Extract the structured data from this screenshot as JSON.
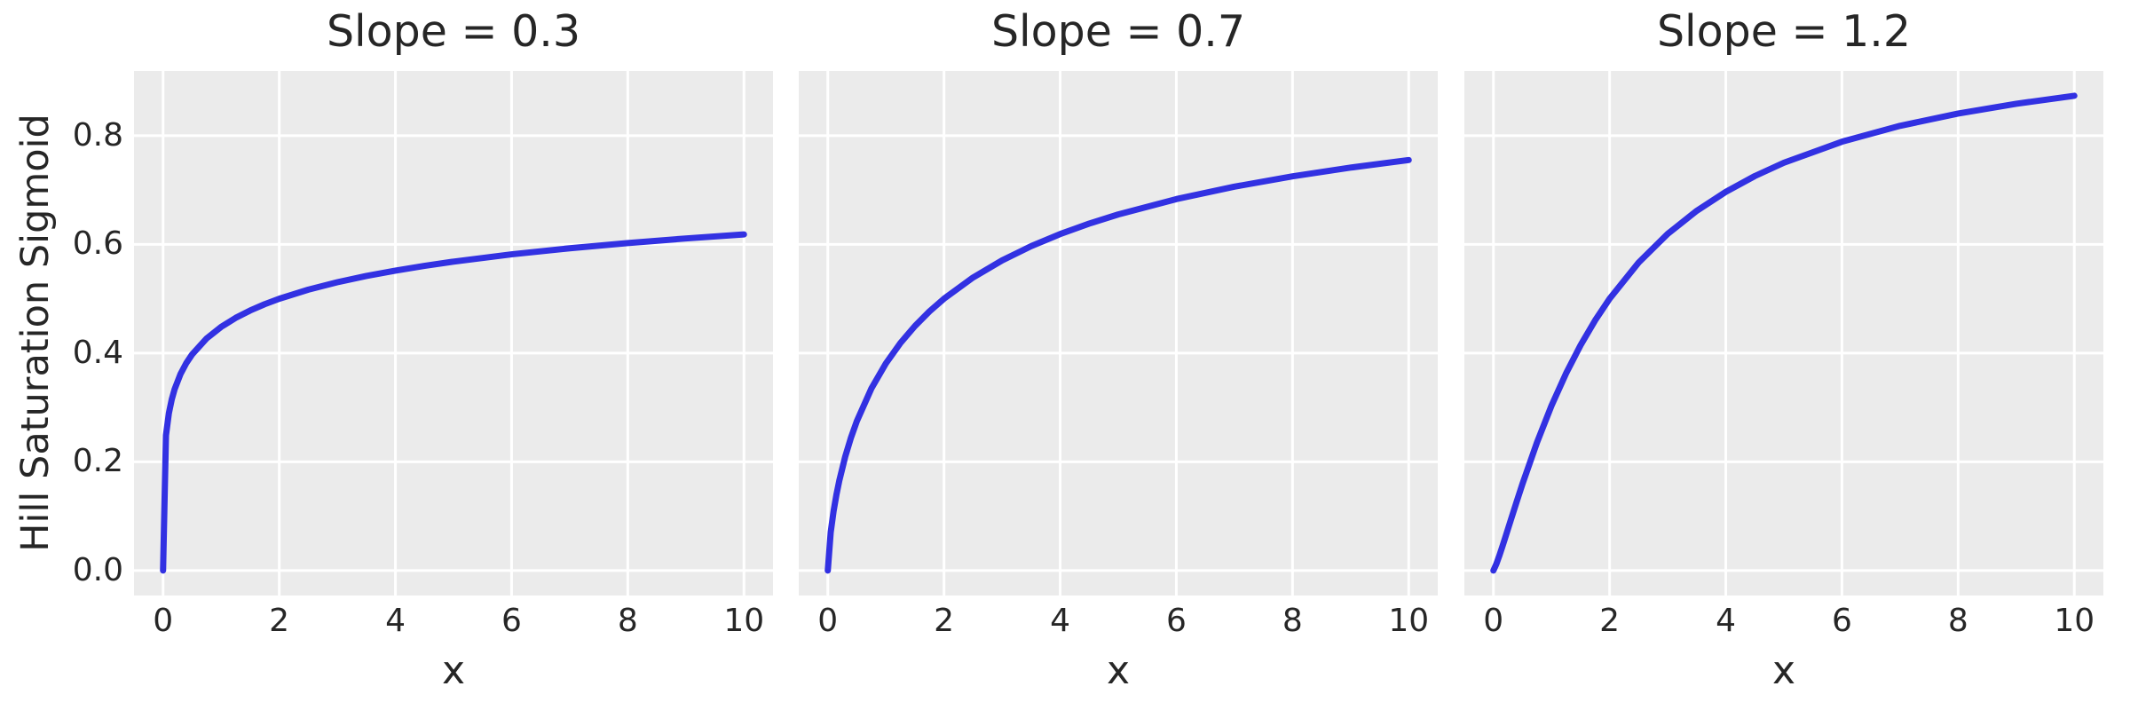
{
  "style": {
    "figure_background": "#ffffff",
    "panel_background": "#ebebeb",
    "grid_color": "#ffffff",
    "line_color": "#3231e2",
    "text_color": "#262626"
  },
  "chart_data": {
    "type": "line",
    "ylabel": "Hill Saturation Sigmoid",
    "xlabel": "x",
    "subplot_titles": [
      "Slope = 0.3",
      "Slope = 0.7",
      "Slope = 1.2"
    ],
    "xlim": [
      -0.5,
      10.5
    ],
    "ylim": [
      -0.046,
      0.919
    ],
    "xticks": [
      0,
      2,
      4,
      6,
      8,
      10
    ],
    "yticks": [
      0.0,
      0.2,
      0.4,
      0.6,
      0.8
    ],
    "grid": true,
    "legend": "none",
    "x": [
      0,
      0.05,
      0.1,
      0.15,
      0.2,
      0.3,
      0.4,
      0.5,
      0.75,
      1,
      1.25,
      1.5,
      1.75,
      2,
      2.5,
      3,
      3.5,
      4,
      4.5,
      5,
      6,
      7,
      8,
      9,
      10
    ],
    "series": [
      {
        "name": "Slope = 0.3",
        "values": [
          0,
          0.2485,
          0.2893,
          0.315,
          0.3339,
          0.3614,
          0.3816,
          0.3975,
          0.427,
          0.4482,
          0.4648,
          0.4784,
          0.49,
          0.5,
          0.5167,
          0.5304,
          0.5419,
          0.5518,
          0.5605,
          0.5683,
          0.5817,
          0.5929,
          0.6025,
          0.6109,
          0.6184
        ]
      },
      {
        "name": "Slope = 0.7",
        "values": [
          0,
          0.0703,
          0.1094,
          0.1403,
          0.1663,
          0.2095,
          0.2448,
          0.2748,
          0.3348,
          0.381,
          0.4185,
          0.4498,
          0.4767,
          0.5,
          0.539,
          0.5705,
          0.5967,
          0.619,
          0.6382,
          0.6551,
          0.6833,
          0.7062,
          0.7252,
          0.7413,
          0.7552
        ]
      },
      {
        "name": "Slope = 1.2",
        "values": [
          0,
          0.0118,
          0.0267,
          0.0428,
          0.0594,
          0.0931,
          0.1266,
          0.1593,
          0.2356,
          0.3033,
          0.3626,
          0.4145,
          0.46,
          0.5,
          0.5666,
          0.6193,
          0.6618,
          0.6967,
          0.7257,
          0.7502,
          0.7889,
          0.8181,
          0.8407,
          0.8587,
          0.8734
        ]
      }
    ]
  }
}
